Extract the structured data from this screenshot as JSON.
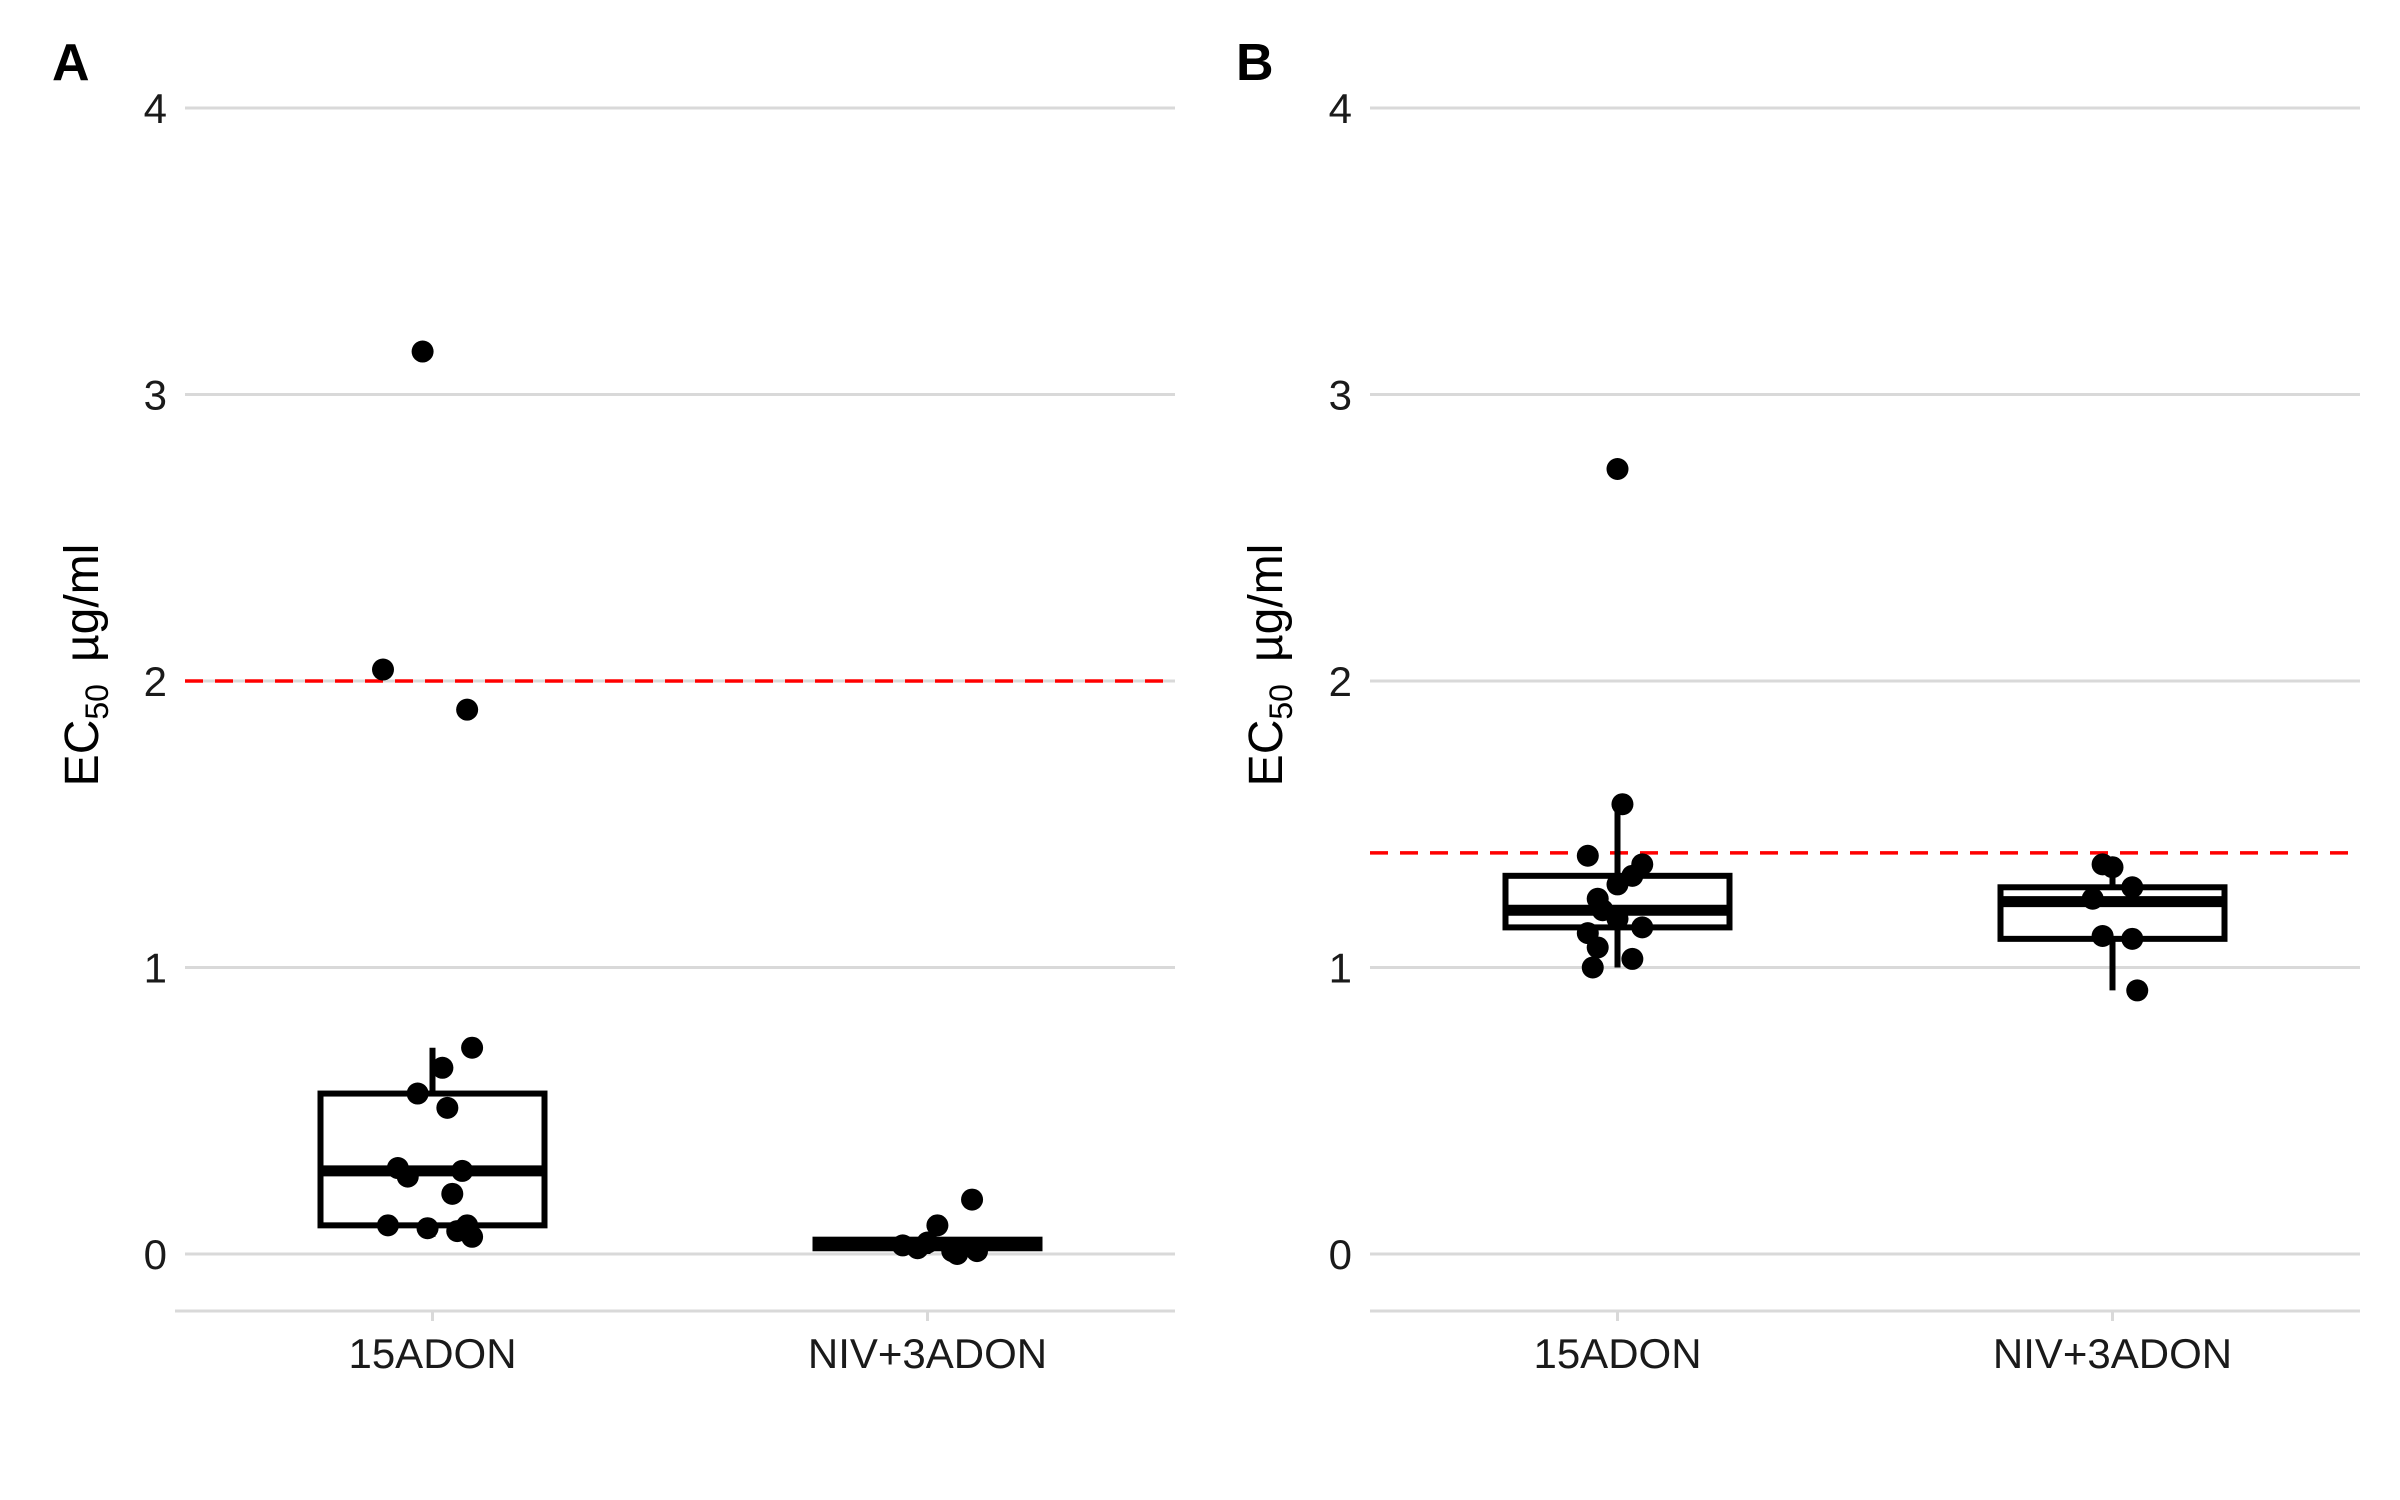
{
  "chart_data": [
    {
      "type": "boxplot",
      "panel_label": "A",
      "ylabel_main": "EC",
      "ylabel_sub": "50",
      "ylabel_unit": "µg/ml",
      "ylim": [
        -0.2,
        4
      ],
      "yticks": [
        0,
        1,
        2,
        3,
        4
      ],
      "grid": "horizontal",
      "reference_line": {
        "y": 2.0,
        "color": "#ff0000",
        "style": "dashed"
      },
      "categories": [
        "15ADON",
        "NIV+3ADON"
      ],
      "boxes": [
        {
          "category": "15ADON",
          "q1": 0.1,
          "median": 0.29,
          "q3": 0.56,
          "whisker_low": 0.06,
          "whisker_high": 0.72
        },
        {
          "category": "NIV+3ADON",
          "q1": 0.02,
          "median": 0.03,
          "q3": 0.05,
          "whisker_low": 0.0,
          "whisker_high": 0.07
        }
      ],
      "points": [
        {
          "category": "15ADON",
          "y": 3.15,
          "jitter": -0.02
        },
        {
          "category": "15ADON",
          "y": 2.04,
          "jitter": -0.1
        },
        {
          "category": "15ADON",
          "y": 1.9,
          "jitter": 0.07
        },
        {
          "category": "15ADON",
          "y": 0.72,
          "jitter": 0.08
        },
        {
          "category": "15ADON",
          "y": 0.65,
          "jitter": 0.02
        },
        {
          "category": "15ADON",
          "y": 0.56,
          "jitter": -0.03
        },
        {
          "category": "15ADON",
          "y": 0.51,
          "jitter": 0.03
        },
        {
          "category": "15ADON",
          "y": 0.3,
          "jitter": -0.07
        },
        {
          "category": "15ADON",
          "y": 0.29,
          "jitter": 0.06
        },
        {
          "category": "15ADON",
          "y": 0.27,
          "jitter": -0.05
        },
        {
          "category": "15ADON",
          "y": 0.21,
          "jitter": 0.04
        },
        {
          "category": "15ADON",
          "y": 0.1,
          "jitter": -0.09
        },
        {
          "category": "15ADON",
          "y": 0.09,
          "jitter": -0.01
        },
        {
          "category": "15ADON",
          "y": 0.1,
          "jitter": 0.07
        },
        {
          "category": "15ADON",
          "y": 0.08,
          "jitter": 0.05
        },
        {
          "category": "15ADON",
          "y": 0.06,
          "jitter": 0.08
        },
        {
          "category": "NIV+3ADON",
          "y": 0.19,
          "jitter": 0.09
        },
        {
          "category": "NIV+3ADON",
          "y": 0.1,
          "jitter": 0.02
        },
        {
          "category": "NIV+3ADON",
          "y": 0.04,
          "jitter": 0.0
        },
        {
          "category": "NIV+3ADON",
          "y": 0.03,
          "jitter": -0.05
        },
        {
          "category": "NIV+3ADON",
          "y": 0.02,
          "jitter": -0.02
        },
        {
          "category": "NIV+3ADON",
          "y": 0.01,
          "jitter": 0.05
        },
        {
          "category": "NIV+3ADON",
          "y": 0.0,
          "jitter": 0.06
        },
        {
          "category": "NIV+3ADON",
          "y": 0.01,
          "jitter": 0.1
        }
      ]
    },
    {
      "type": "boxplot",
      "panel_label": "B",
      "ylabel_main": "EC",
      "ylabel_sub": "50",
      "ylabel_unit": "µg/ml",
      "ylim": [
        -0.2,
        4
      ],
      "yticks": [
        0,
        1,
        2,
        3,
        4
      ],
      "grid": "horizontal",
      "reference_line": {
        "y": 1.4,
        "color": "#ff0000",
        "style": "dashed"
      },
      "categories": [
        "15ADON",
        "NIV+3ADON"
      ],
      "boxes": [
        {
          "category": "15ADON",
          "q1": 1.14,
          "median": 1.2,
          "q3": 1.32,
          "whisker_low": 1.0,
          "whisker_high": 1.56
        },
        {
          "category": "NIV+3ADON",
          "q1": 1.1,
          "median": 1.23,
          "q3": 1.28,
          "whisker_low": 0.92,
          "whisker_high": 1.36
        }
      ],
      "points": [
        {
          "category": "15ADON",
          "y": 2.74,
          "jitter": 0.0
        },
        {
          "category": "15ADON",
          "y": 1.57,
          "jitter": 0.01
        },
        {
          "category": "15ADON",
          "y": 1.39,
          "jitter": -0.06
        },
        {
          "category": "15ADON",
          "y": 1.36,
          "jitter": 0.05
        },
        {
          "category": "15ADON",
          "y": 1.32,
          "jitter": 0.03
        },
        {
          "category": "15ADON",
          "y": 1.29,
          "jitter": 0.0
        },
        {
          "category": "15ADON",
          "y": 1.24,
          "jitter": -0.04
        },
        {
          "category": "15ADON",
          "y": 1.2,
          "jitter": -0.03
        },
        {
          "category": "15ADON",
          "y": 1.17,
          "jitter": 0.0
        },
        {
          "category": "15ADON",
          "y": 1.14,
          "jitter": 0.05
        },
        {
          "category": "15ADON",
          "y": 1.12,
          "jitter": -0.06
        },
        {
          "category": "15ADON",
          "y": 1.07,
          "jitter": -0.04
        },
        {
          "category": "15ADON",
          "y": 1.03,
          "jitter": 0.03
        },
        {
          "category": "15ADON",
          "y": 1.0,
          "jitter": -0.05
        },
        {
          "category": "NIV+3ADON",
          "y": 1.36,
          "jitter": -0.02
        },
        {
          "category": "NIV+3ADON",
          "y": 1.35,
          "jitter": 0.0
        },
        {
          "category": "NIV+3ADON",
          "y": 1.28,
          "jitter": 0.04
        },
        {
          "category": "NIV+3ADON",
          "y": 1.24,
          "jitter": -0.04
        },
        {
          "category": "NIV+3ADON",
          "y": 1.11,
          "jitter": -0.02
        },
        {
          "category": "NIV+3ADON",
          "y": 1.1,
          "jitter": 0.04
        },
        {
          "category": "NIV+3ADON",
          "y": 0.92,
          "jitter": 0.05
        }
      ]
    }
  ]
}
